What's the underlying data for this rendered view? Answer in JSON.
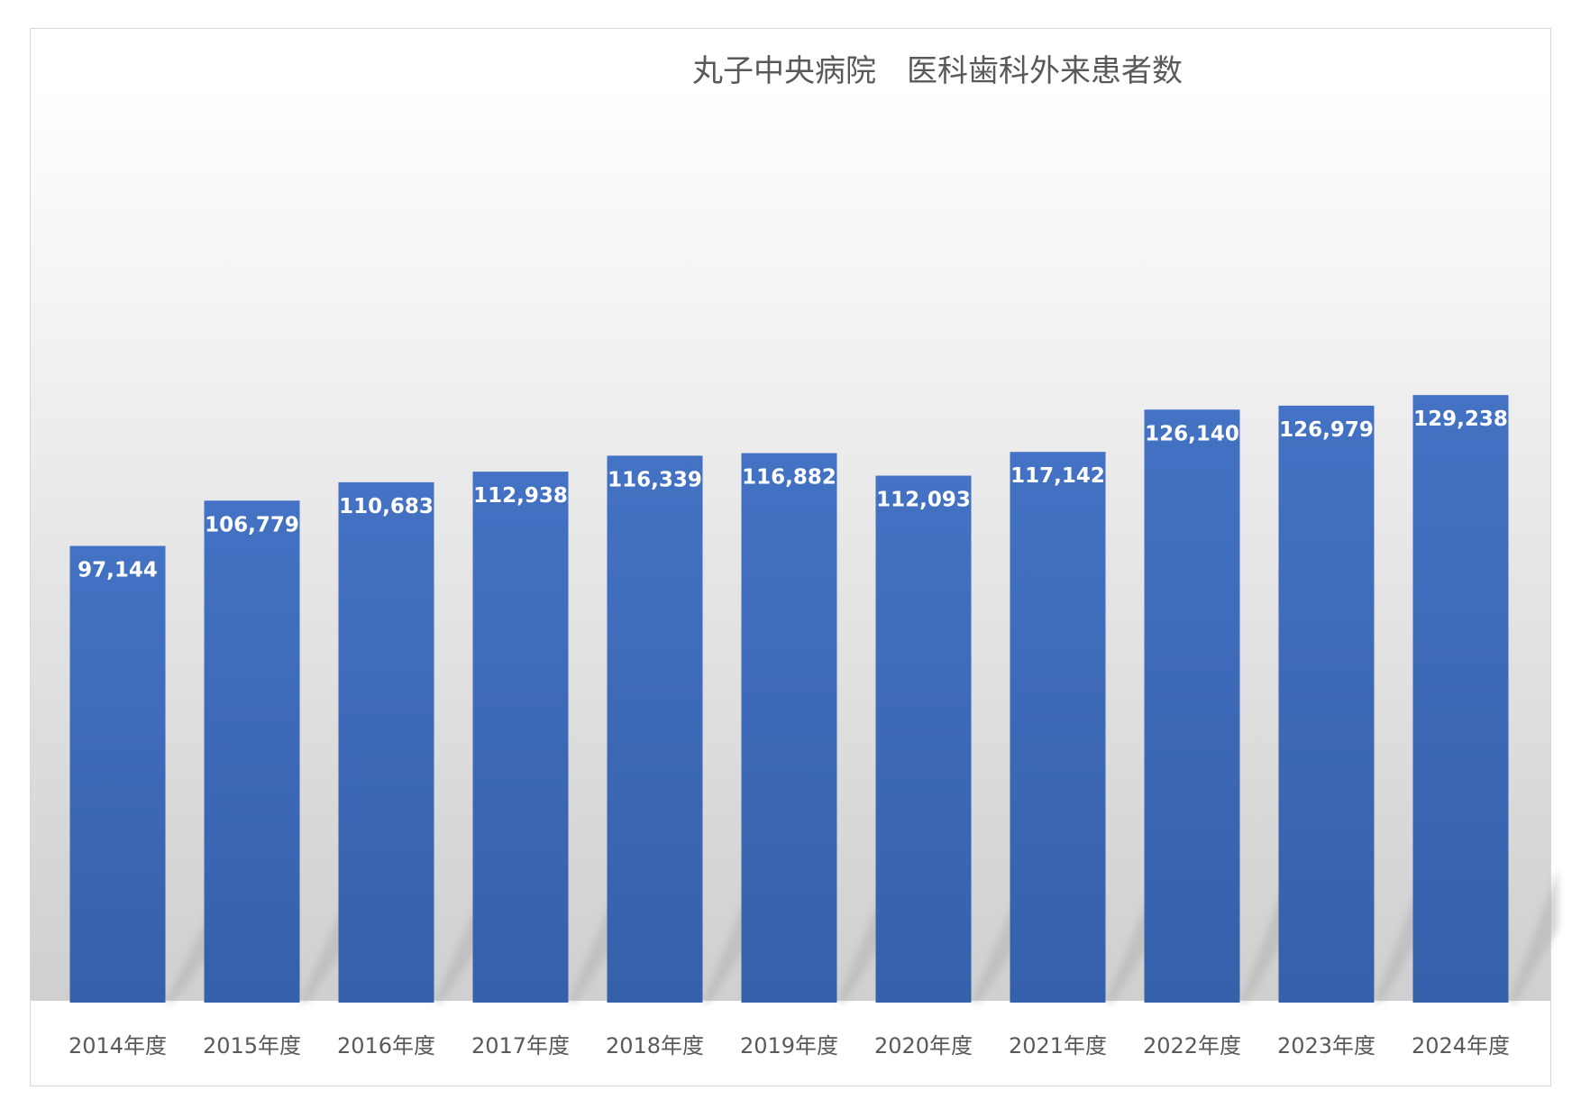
{
  "chart_data": {
    "type": "bar",
    "title": "丸子中央病院　医科歯科外来患者数",
    "xlabel": "",
    "ylabel": "",
    "categories": [
      "2014年度",
      "2015年度",
      "2016年度",
      "2017年度",
      "2018年度",
      "2019年度",
      "2020年度",
      "2021年度",
      "2022年度",
      "2023年度",
      "2024年度"
    ],
    "values": [
      97144,
      106779,
      110683,
      112938,
      116339,
      116882,
      112093,
      117142,
      126140,
      126979,
      129238
    ],
    "value_labels": [
      "97,144",
      "106,779",
      "110,683",
      "112,938",
      "116,339",
      "116,882",
      "112,093",
      "117,142",
      "126,140",
      "126,979",
      "129,238"
    ],
    "grid": false,
    "legend": "none",
    "bar_color": "#4472c4"
  }
}
